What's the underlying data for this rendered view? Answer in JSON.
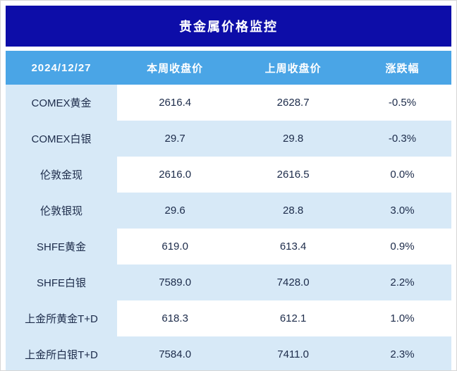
{
  "title": "贵金属价格监控",
  "table": {
    "headers": [
      "2024/12/27",
      "本周收盘价",
      "上周收盘价",
      "涨跌幅"
    ],
    "rows": [
      {
        "name": "COMEX黄金",
        "this_week": "2616.4",
        "last_week": "2628.7",
        "change": "-0.5%"
      },
      {
        "name": "COMEX白银",
        "this_week": "29.7",
        "last_week": "29.8",
        "change": "-0.3%"
      },
      {
        "name": "伦敦金现",
        "this_week": "2616.0",
        "last_week": "2616.5",
        "change": "0.0%"
      },
      {
        "name": "伦敦银现",
        "this_week": "29.6",
        "last_week": "28.8",
        "change": "3.0%"
      },
      {
        "name": "SHFE黄金",
        "this_week": "619.0",
        "last_week": "613.4",
        "change": "0.9%"
      },
      {
        "name": "SHFE白银",
        "this_week": "7589.0",
        "last_week": "7428.0",
        "change": "2.2%"
      },
      {
        "name": "上金所黄金T+D",
        "this_week": "618.3",
        "last_week": "612.1",
        "change": "1.0%"
      },
      {
        "name": "上金所白银T+D",
        "this_week": "7584.0",
        "last_week": "7411.0",
        "change": "2.3%"
      }
    ]
  },
  "colors": {
    "title_bg": "#0d0da8",
    "header_bg": "#4aa5e6",
    "row_tint": "#d7e9f7",
    "text": "#1c2b4a"
  },
  "chart_data": {
    "type": "table",
    "title": "贵金属价格监控",
    "columns": [
      "2024/12/27",
      "本周收盘价",
      "上周收盘价",
      "涨跌幅"
    ],
    "rows": [
      [
        "COMEX黄金",
        2616.4,
        2628.7,
        "-0.5%"
      ],
      [
        "COMEX白银",
        29.7,
        29.8,
        "-0.3%"
      ],
      [
        "伦敦金现",
        2616.0,
        2616.5,
        "0.0%"
      ],
      [
        "伦敦银现",
        29.6,
        28.8,
        "3.0%"
      ],
      [
        "SHFE黄金",
        619.0,
        613.4,
        "0.9%"
      ],
      [
        "SHFE白银",
        7589.0,
        7428.0,
        "2.2%"
      ],
      [
        "上金所黄金T+D",
        618.3,
        612.1,
        "1.0%"
      ],
      [
        "上金所白银T+D",
        7584.0,
        7411.0,
        "2.3%"
      ]
    ]
  }
}
